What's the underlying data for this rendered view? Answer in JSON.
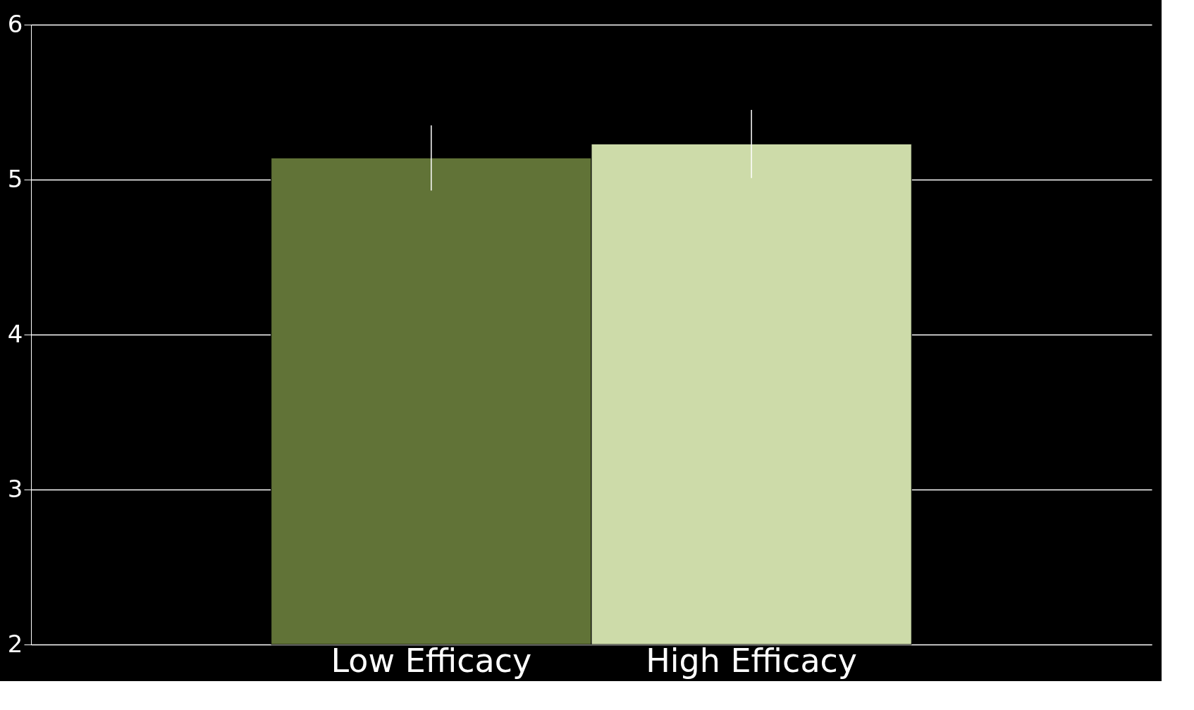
{
  "chart_data": {
    "type": "bar",
    "categories": [
      "Low Efficacy",
      "High Efficacy"
    ],
    "values": [
      5.14,
      5.23
    ],
    "colors": [
      "#617337",
      "#cddba9"
    ],
    "errors": [
      0.21,
      0.22
    ],
    "ylim": [
      2,
      6
    ],
    "yticks": [
      2,
      3,
      4,
      5,
      6
    ],
    "grid": "y"
  }
}
